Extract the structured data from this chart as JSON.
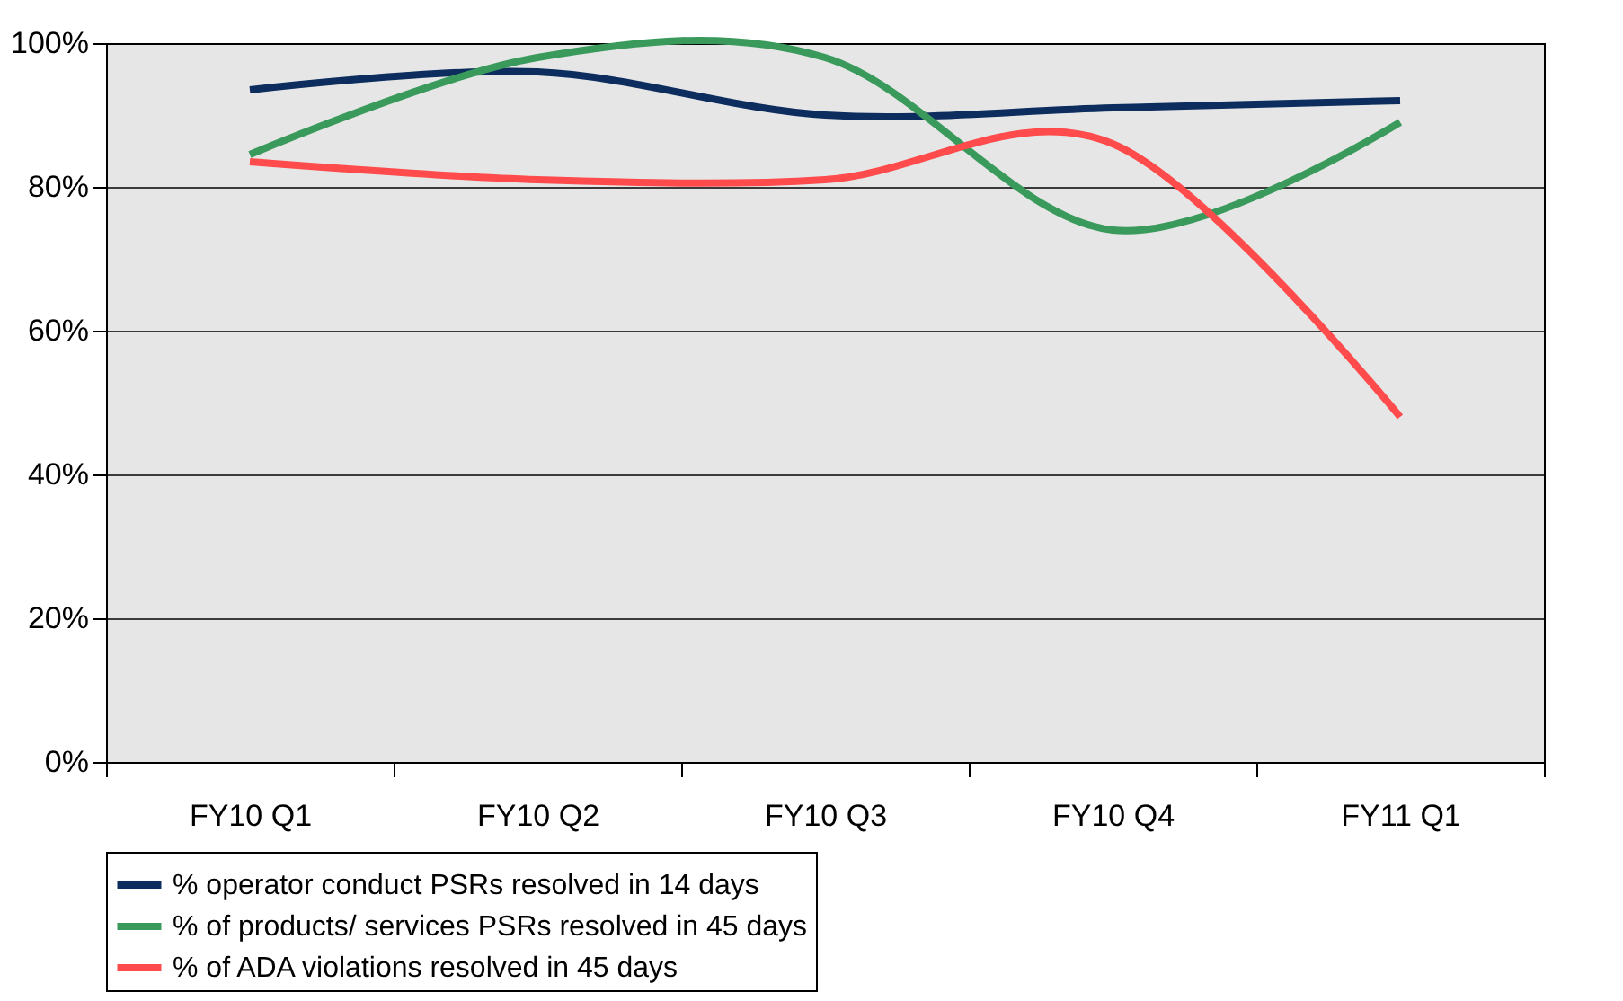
{
  "chart_data": {
    "type": "line",
    "categories": [
      "FY10 Q1",
      "FY10 Q2",
      "FY10 Q3",
      "FY10 Q4",
      "FY11 Q1"
    ],
    "series": [
      {
        "name": "% operator conduct PSRs resolved in 14 days",
        "color": "#0d2d5e",
        "values": [
          93.5,
          96,
          90,
          91,
          92
        ]
      },
      {
        "name": "% of products/ services PSRs resolved in 45 days",
        "color": "#3a9a5b",
        "values": [
          84.5,
          98,
          98,
          74,
          89
        ]
      },
      {
        "name": "% of ADA violations resolved in 45 days",
        "color": "#ff4b4b",
        "values": [
          83.5,
          81,
          81,
          86,
          48
        ]
      }
    ],
    "ylim": [
      0,
      100
    ],
    "yticks": [
      {
        "value": 0,
        "label": "0%"
      },
      {
        "value": 20,
        "label": "20%"
      },
      {
        "value": 40,
        "label": "40%"
      },
      {
        "value": 60,
        "label": "60%"
      },
      {
        "value": 80,
        "label": "80%"
      },
      {
        "value": 100,
        "label": "100%"
      }
    ],
    "grid": "y",
    "legend": "bottom",
    "marker": "none",
    "line_style": "solid"
  }
}
